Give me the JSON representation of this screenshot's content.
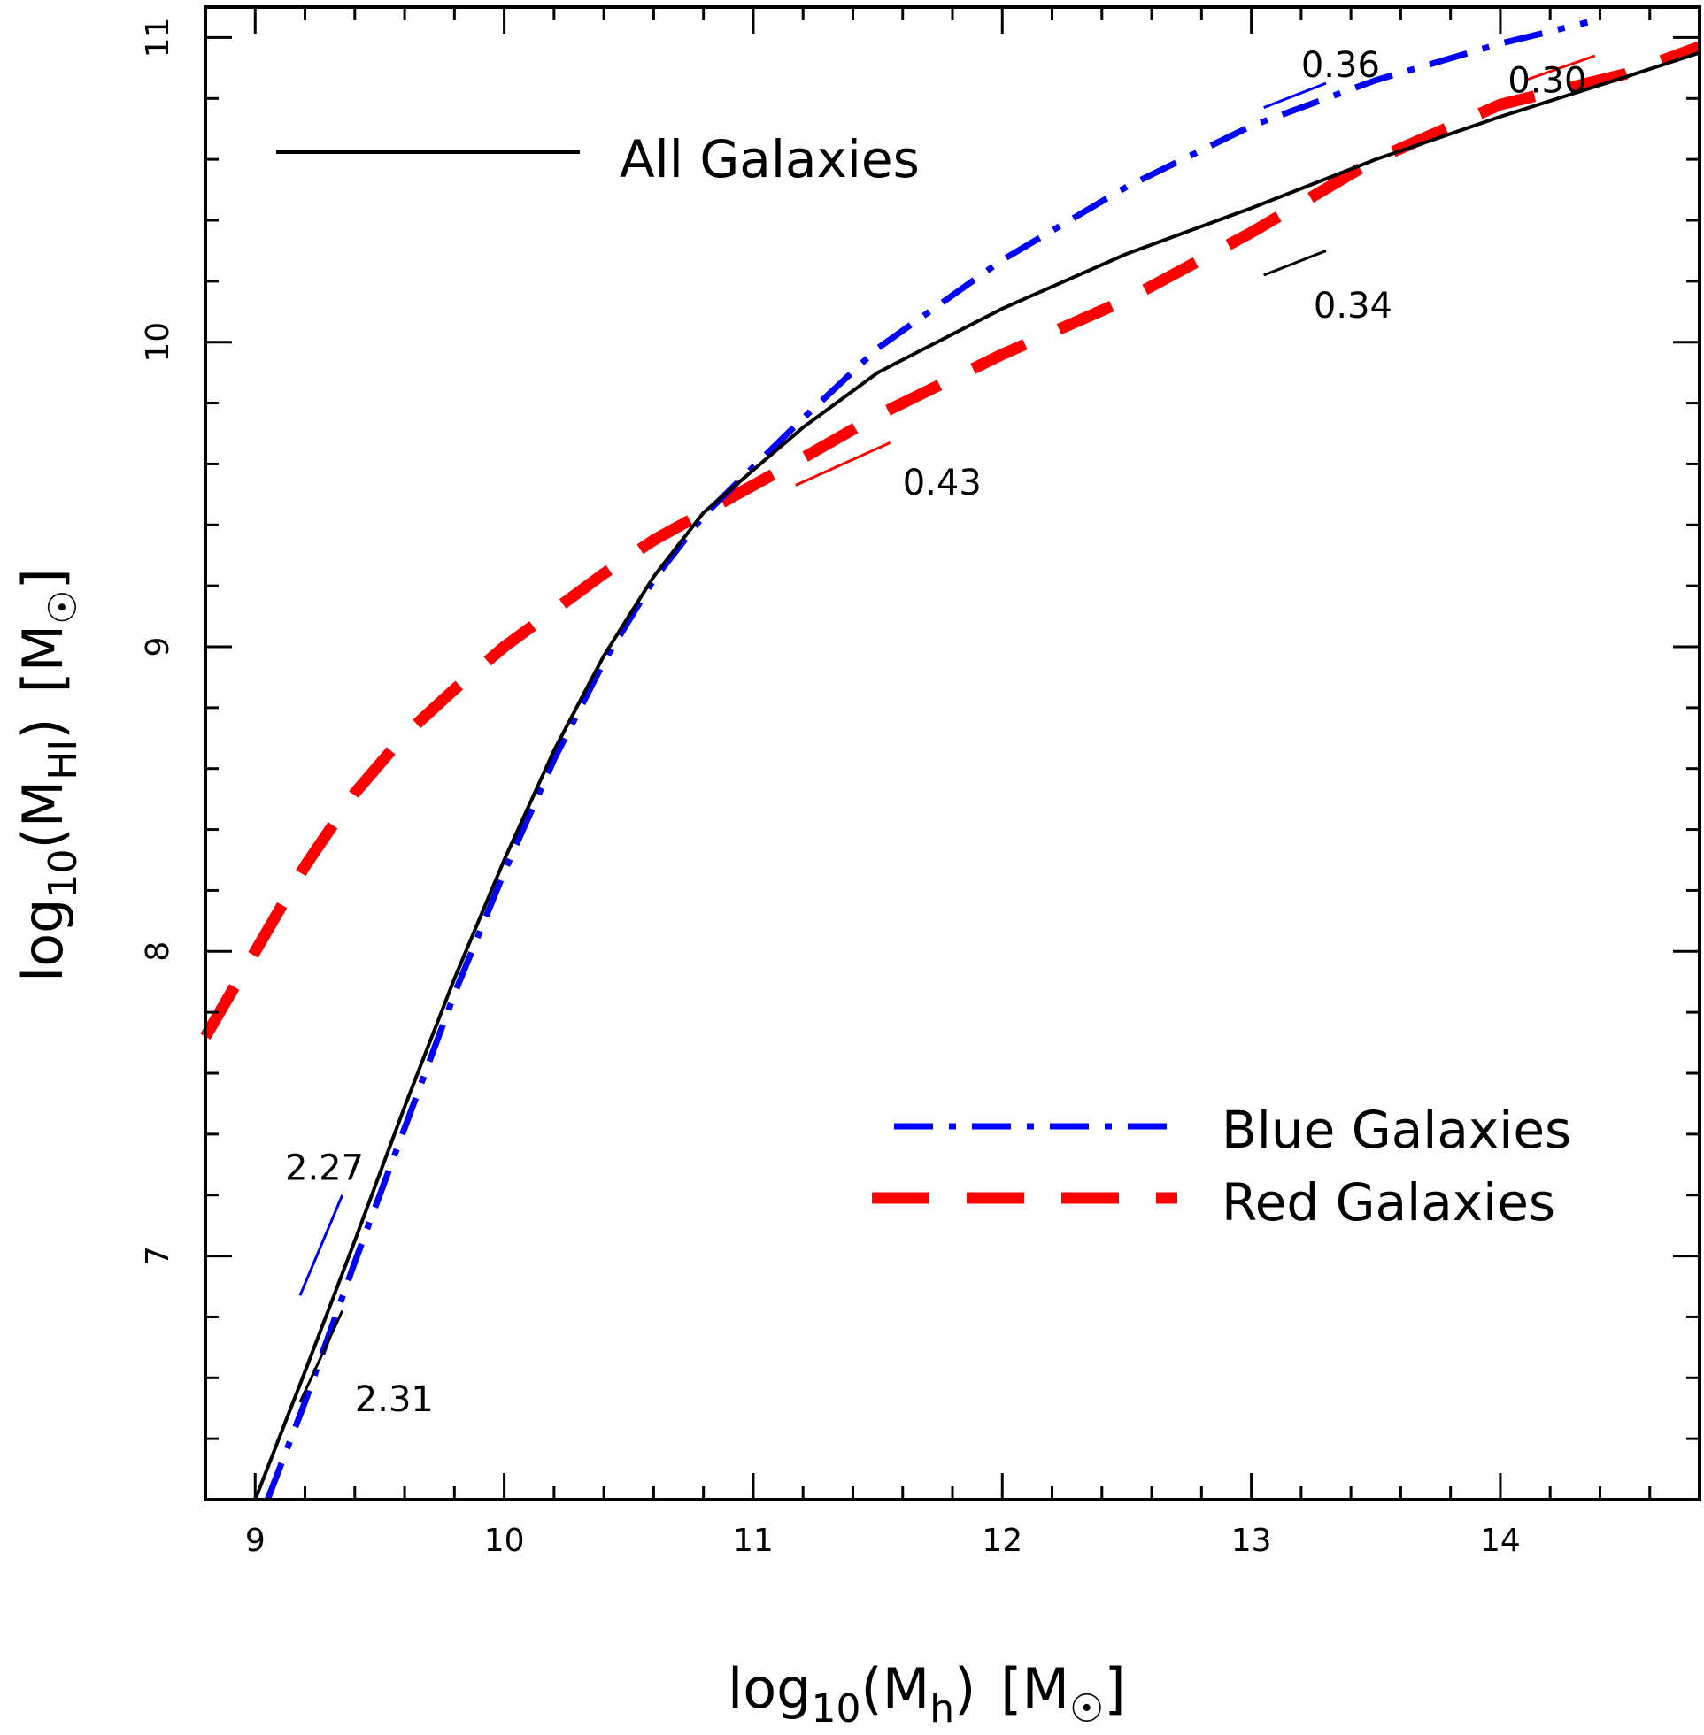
{
  "chart_data": {
    "type": "line",
    "xlabel": {
      "prefix": "log",
      "sub": "10",
      "main": "(M",
      "msub": "h",
      "close": ")",
      "unit": "[M",
      "unit_close": "]"
    },
    "ylabel": {
      "prefix": "log",
      "sub": "10",
      "main": "(M",
      "msub": "HI",
      "close": ")",
      "unit": "[M",
      "unit_close": "]"
    },
    "xlim": [
      8.8,
      14.8
    ],
    "ylim": [
      6.2,
      11.1
    ],
    "x_ticks": [
      9,
      10,
      11,
      12,
      13,
      14
    ],
    "x_tick_labels": [
      "9",
      "10",
      "11",
      "12",
      "13",
      "14"
    ],
    "y_ticks": [
      7,
      8,
      9,
      10,
      11
    ],
    "y_tick_labels": [
      "7",
      "8",
      "9",
      "10",
      "11"
    ],
    "x_minor_step": 0.2,
    "y_minor_step": 0.2,
    "series": [
      {
        "name": "All Galaxies",
        "color": "#000000",
        "style": "solid",
        "x": [
          9.0,
          9.2,
          9.4,
          9.6,
          9.8,
          10.0,
          10.2,
          10.4,
          10.6,
          10.8,
          11.0,
          11.2,
          11.5,
          12.0,
          12.5,
          13.0,
          13.5,
          14.0,
          14.5,
          14.8
        ],
        "y": [
          6.2,
          6.62,
          7.05,
          7.49,
          7.91,
          8.3,
          8.66,
          8.97,
          9.23,
          9.44,
          9.58,
          9.72,
          9.9,
          10.11,
          10.29,
          10.44,
          10.6,
          10.74,
          10.87,
          10.95
        ]
      },
      {
        "name": "Blue Galaxies",
        "color": "#0000ff",
        "style": "dashdot",
        "x": [
          9.05,
          9.2,
          9.4,
          9.6,
          9.8,
          10.0,
          10.2,
          10.4,
          10.6,
          10.8,
          11.0,
          11.2,
          11.5,
          12.0,
          12.5,
          13.0,
          13.5,
          14.0,
          14.35
        ],
        "y": [
          6.2,
          6.52,
          6.98,
          7.42,
          7.86,
          8.26,
          8.63,
          8.95,
          9.22,
          9.43,
          9.59,
          9.75,
          9.98,
          10.27,
          10.51,
          10.71,
          10.86,
          10.98,
          11.05
        ]
      },
      {
        "name": "Red Galaxies",
        "color": "#ff0000",
        "style": "dashed",
        "x": [
          8.8,
          9.0,
          9.2,
          9.4,
          9.6,
          9.8,
          10.0,
          10.2,
          10.4,
          10.6,
          10.8,
          11.0,
          11.2,
          11.5,
          12.0,
          12.5,
          13.0,
          13.5,
          14.0,
          14.5,
          14.8
        ],
        "y": [
          7.72,
          8.0,
          8.28,
          8.52,
          8.71,
          8.86,
          9.0,
          9.12,
          9.24,
          9.35,
          9.44,
          9.53,
          9.62,
          9.76,
          9.96,
          10.14,
          10.36,
          10.6,
          10.78,
          10.88,
          10.97
        ]
      }
    ],
    "legend": [
      {
        "label": "All Galaxies",
        "color": "#000000",
        "style": "solid",
        "placement": "top-left"
      },
      {
        "label": "Blue Galaxies",
        "color": "#0000ff",
        "style": "dashdot",
        "placement": "bottom-right"
      },
      {
        "label": "Red Galaxies",
        "color": "#ff0000",
        "style": "dashed",
        "placement": "bottom-right"
      }
    ],
    "slope_annotations": [
      {
        "text": "2.27",
        "color": "#0000ff",
        "x1": 9.18,
        "y1": 6.87,
        "x2": 9.35,
        "y2": 7.2,
        "tx": 9.12,
        "ty": 7.25
      },
      {
        "text": "2.31",
        "color": "#000000",
        "x1": 9.18,
        "y1": 6.52,
        "x2": 9.35,
        "y2": 6.82,
        "tx": 9.4,
        "ty": 6.49
      },
      {
        "text": "0.43",
        "color": "#ff0000",
        "x1": 11.17,
        "y1": 9.53,
        "x2": 11.55,
        "y2": 9.67,
        "tx": 11.6,
        "ty": 9.5
      },
      {
        "text": "0.34",
        "color": "#000000",
        "x1": 13.05,
        "y1": 10.22,
        "x2": 13.3,
        "y2": 10.3,
        "tx": 13.25,
        "ty": 10.08
      },
      {
        "text": "0.36",
        "color": "#0000ff",
        "x1": 13.05,
        "y1": 10.77,
        "x2": 13.3,
        "y2": 10.85,
        "tx": 13.2,
        "ty": 10.87
      },
      {
        "text": "0.30",
        "color": "#ff0000",
        "x1": 14.1,
        "y1": 10.86,
        "x2": 14.38,
        "y2": 10.94,
        "tx": 14.03,
        "ty": 10.82
      }
    ]
  }
}
